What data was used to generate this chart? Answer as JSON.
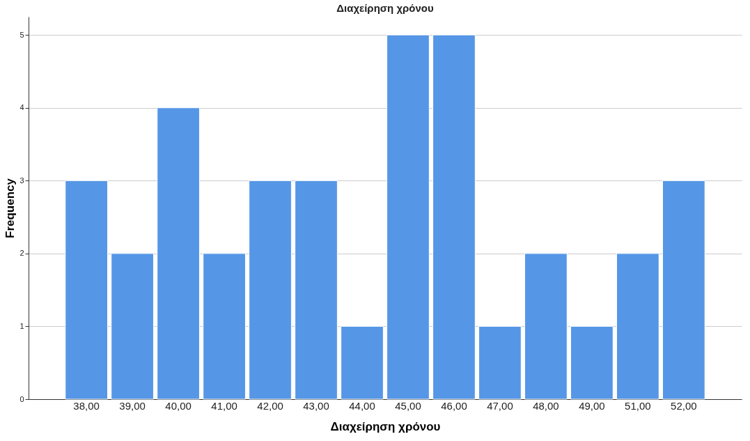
{
  "chart_data": {
    "type": "bar",
    "title": "Διαχείρηση χρόνου",
    "xlabel": "Διαχείρηση χρόνου",
    "ylabel": "Frequency",
    "categories": [
      "38,00",
      "39,00",
      "40,00",
      "41,00",
      "42,00",
      "43,00",
      "44,00",
      "45,00",
      "46,00",
      "47,00",
      "48,00",
      "49,00",
      "51,00",
      "52,00"
    ],
    "values": [
      3,
      2,
      4,
      2,
      3,
      3,
      1,
      5,
      5,
      1,
      2,
      1,
      2,
      3
    ],
    "color": "#5596e6",
    "ylim": [
      0,
      5.25
    ],
    "yticks": [
      0,
      1,
      2,
      3,
      4,
      5
    ],
    "grid": "y"
  }
}
